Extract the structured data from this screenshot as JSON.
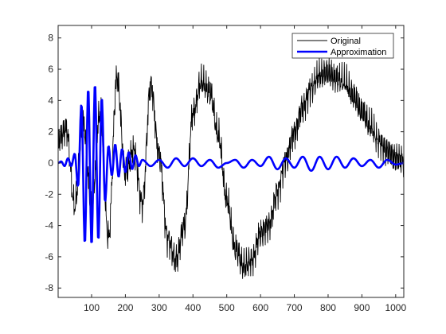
{
  "chart_data": {
    "type": "line",
    "title": "",
    "xlabel": "",
    "ylabel": "",
    "xlim": [
      1,
      1024
    ],
    "ylim": [
      -8.6,
      8.8
    ],
    "x_ticks": [
      100,
      200,
      300,
      400,
      500,
      600,
      700,
      800,
      900,
      1000
    ],
    "y_ticks": [
      -8,
      -6,
      -4,
      -2,
      0,
      2,
      4,
      6,
      8
    ],
    "grid": false,
    "legend_position": "top-right",
    "series": [
      {
        "name": "Original",
        "color": "#000000",
        "style": "thin",
        "x": [
          1,
          25,
          50,
          75,
          100,
          125,
          150,
          175,
          200,
          225,
          250,
          275,
          300,
          325,
          350,
          375,
          400,
          425,
          450,
          475,
          500,
          525,
          550,
          575,
          600,
          625,
          650,
          675,
          700,
          725,
          750,
          775,
          800,
          825,
          850,
          875,
          900,
          925,
          950,
          975,
          1000,
          1024
        ],
        "y": [
          1.5,
          2.2,
          -2.8,
          2.5,
          -2.7,
          3.2,
          -4.8,
          5.5,
          -0.6,
          0.8,
          -2.6,
          5.0,
          0.5,
          -4.8,
          -6.2,
          -4.0,
          3.2,
          5.2,
          4.5,
          1.8,
          -2.3,
          -5.5,
          -6.6,
          -6.2,
          -4.5,
          -4.0,
          -1.8,
          0.2,
          1.9,
          3.6,
          4.8,
          5.6,
          5.8,
          5.4,
          5.1,
          4.3,
          3.3,
          2.3,
          1.4,
          0.8,
          0.3,
          0.2
        ]
      },
      {
        "name": "Approximation",
        "color": "#0000ff",
        "style": "thick",
        "x": [
          1,
          10,
          20,
          30,
          40,
          50,
          60,
          70,
          80,
          90,
          100,
          110,
          120,
          130,
          140,
          150,
          160,
          170,
          180,
          190,
          200,
          210,
          220,
          230,
          240,
          250,
          275,
          300,
          325,
          350,
          375,
          400,
          425,
          450,
          475,
          500,
          525,
          550,
          575,
          600,
          625,
          650,
          675,
          700,
          725,
          750,
          775,
          800,
          825,
          850,
          875,
          900,
          925,
          950,
          975,
          1000,
          1024
        ],
        "y": [
          0.0,
          0.1,
          -0.2,
          0.3,
          -0.2,
          0.6,
          -1.5,
          3.8,
          -5.2,
          4.8,
          -5.3,
          5.1,
          -5.0,
          4.2,
          -2.5,
          1.1,
          -0.8,
          1.2,
          -0.9,
          0.9,
          -0.6,
          0.7,
          -0.4,
          0.5,
          -0.2,
          0.2,
          -0.2,
          0.2,
          -0.3,
          0.3,
          -0.2,
          0.3,
          -0.2,
          0.2,
          -0.3,
          0.0,
          0.2,
          -0.3,
          0.2,
          -0.2,
          0.4,
          -0.4,
          0.3,
          -0.3,
          0.4,
          -0.5,
          0.4,
          -0.4,
          0.4,
          -0.3,
          0.3,
          -0.2,
          0.2,
          -0.3,
          0.2,
          -0.1,
          0.0
        ]
      }
    ]
  }
}
